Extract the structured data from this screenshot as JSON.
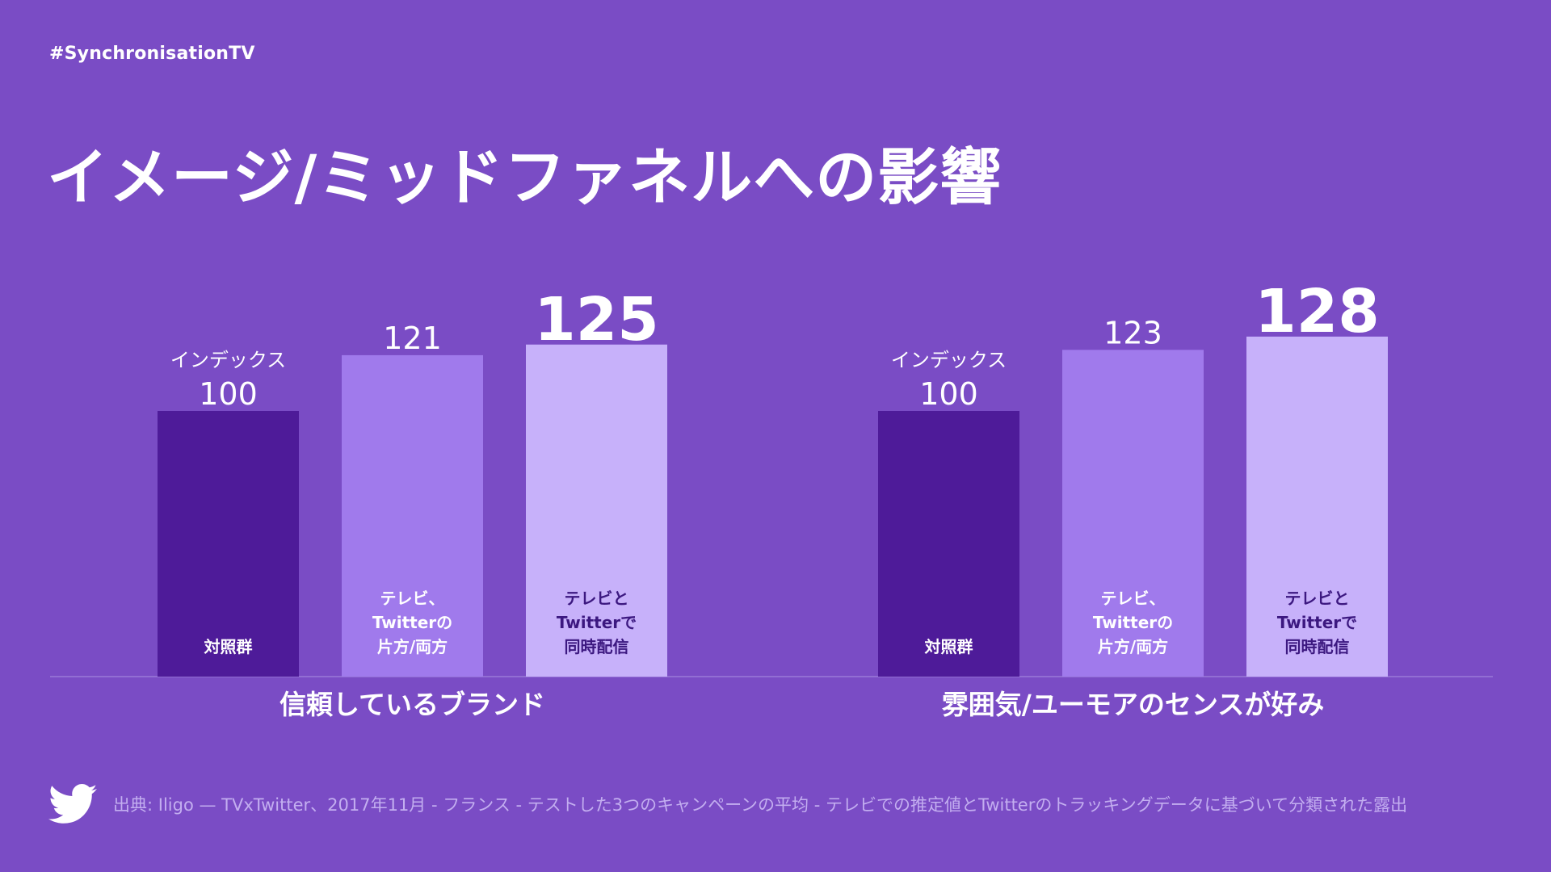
{
  "header": {
    "hashtag": "#SynchronisationTV",
    "title": "イメージ/ミッドファネルへの影響"
  },
  "chart_data": {
    "type": "bar",
    "groups": [
      {
        "label": "信頼しているブランド",
        "bars": [
          {
            "value": 100,
            "value_label": "100",
            "top_note": "インデックス",
            "label": [
              "対照群"
            ],
            "color": "#4e1b99"
          },
          {
            "value": 121,
            "value_label": "121",
            "label": [
              "テレビ、",
              "Twitterの",
              "片方/両方"
            ],
            "color": "#a07aec"
          },
          {
            "value": 125,
            "value_label": "125",
            "label": [
              "テレビと",
              "Twitterで",
              "同時配信"
            ],
            "color": "#c7b1fa"
          }
        ]
      },
      {
        "label": "雰囲気/ユーモアのセンスが好み",
        "bars": [
          {
            "value": 100,
            "value_label": "100",
            "top_note": "インデックス",
            "label": [
              "対照群"
            ],
            "color": "#4e1b99"
          },
          {
            "value": 123,
            "value_label": "123",
            "label": [
              "テレビ、",
              "Twitterの",
              "片方/両方"
            ],
            "color": "#a07aec"
          },
          {
            "value": 128,
            "value_label": "128",
            "label": [
              "テレビと",
              "Twitterで",
              "同時配信"
            ],
            "color": "#c7b1fa"
          }
        ]
      }
    ],
    "colors": {
      "control": "#4e1b99",
      "either": "#a07aec",
      "synced": "#c7b1fa",
      "baseline": "#9a7ad8"
    }
  },
  "footer": {
    "icon": "twitter-bird-icon",
    "source": "出典: Iligo — TVxTwitter、2017年11月 - フランス - テストした3つのキャンペーンの平均 - テレビでの推定値とTwitterのトラッキングデータに基づいて分類された露出"
  }
}
